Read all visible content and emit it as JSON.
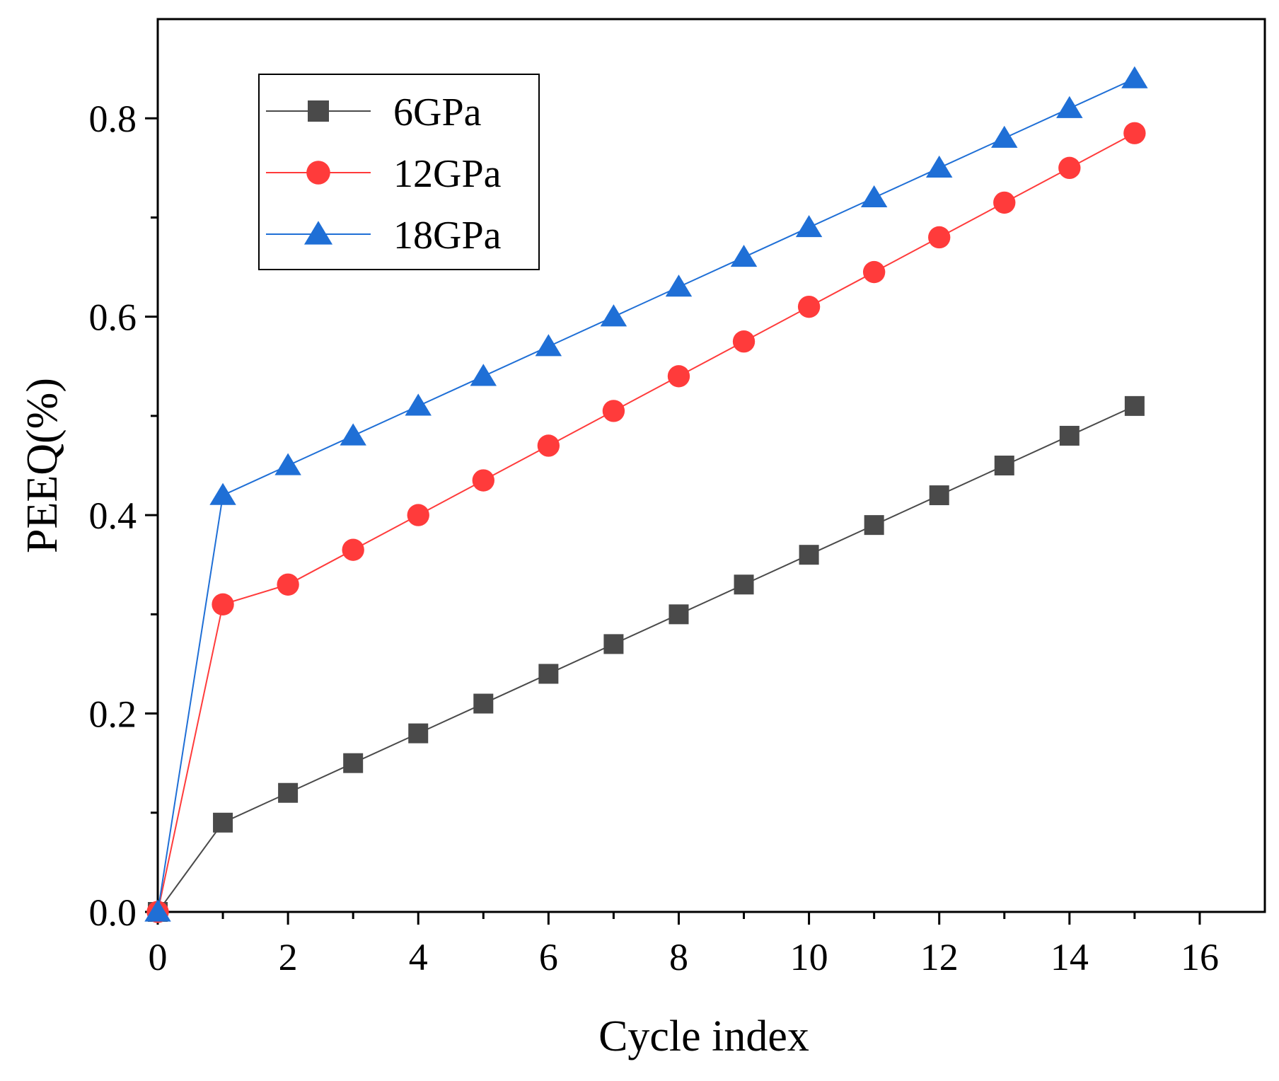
{
  "chart_data": {
    "type": "line",
    "title": "",
    "xlabel": "Cycle index",
    "ylabel": "PEEQ(%)",
    "xlim": [
      0,
      17
    ],
    "ylim": [
      0,
      0.9
    ],
    "xticks": [
      0,
      2,
      4,
      6,
      8,
      10,
      12,
      14,
      16
    ],
    "xtick_labels": [
      "0",
      "2",
      "4",
      "6",
      "8",
      "10",
      "12",
      "14",
      "16"
    ],
    "yticks": [
      0.0,
      0.2,
      0.4,
      0.6,
      0.8
    ],
    "ytick_labels": [
      "0.0",
      "0.2",
      "0.4",
      "0.6",
      "0.8"
    ],
    "grid": false,
    "legend_position": "top-left",
    "x": [
      0,
      1,
      2,
      3,
      4,
      5,
      6,
      7,
      8,
      9,
      10,
      11,
      12,
      13,
      14,
      15
    ],
    "series": [
      {
        "name": "6GPa",
        "color": "#4a4a4a",
        "marker": "square",
        "values": [
          0,
          0.09,
          0.12,
          0.15,
          0.18,
          0.21,
          0.24,
          0.27,
          0.3,
          0.33,
          0.36,
          0.39,
          0.42,
          0.45,
          0.48,
          0.51
        ]
      },
      {
        "name": "12GPa",
        "color": "#ff3b3b",
        "marker": "circle",
        "values": [
          0,
          0.31,
          0.33,
          0.365,
          0.4,
          0.435,
          0.47,
          0.505,
          0.54,
          0.575,
          0.61,
          0.645,
          0.68,
          0.715,
          0.75,
          0.785
        ]
      },
      {
        "name": "18GPa",
        "color": "#1f6fd6",
        "marker": "triangle",
        "values": [
          0,
          0.42,
          0.45,
          0.48,
          0.51,
          0.54,
          0.57,
          0.6,
          0.63,
          0.66,
          0.69,
          0.72,
          0.75,
          0.78,
          0.81,
          0.84
        ]
      }
    ]
  }
}
